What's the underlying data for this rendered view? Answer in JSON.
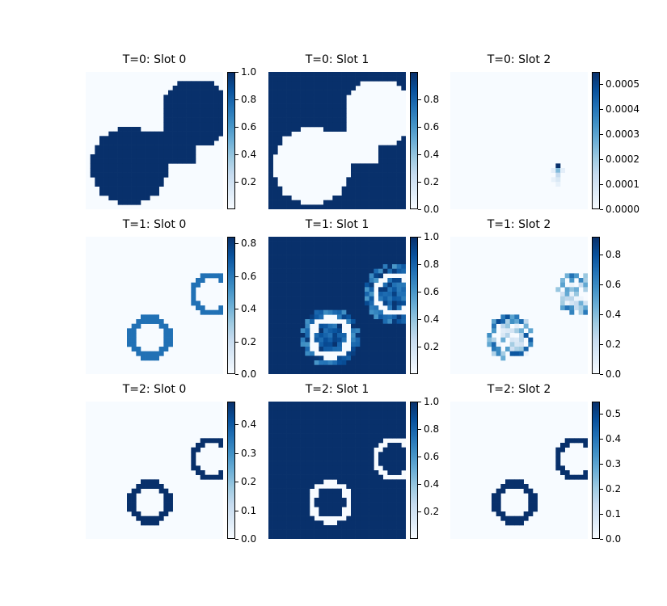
{
  "colormap": [
    "#f7fbff",
    "#deebf7",
    "#c6dbef",
    "#9ecae1",
    "#6baed6",
    "#4292c6",
    "#2171b5",
    "#08519c",
    "#08306b"
  ],
  "chart_data": [
    {
      "type": "heatmap",
      "title": "T=0: Slot 0",
      "grid": [
        30,
        30
      ],
      "colorbar": {
        "min": 0.0,
        "max": 1.0,
        "ticks": [
          "0.2",
          "0.4",
          "0.6",
          "0.8",
          "1.0"
        ],
        "tick_values": [
          0.2,
          0.4,
          0.6,
          0.8,
          1.0
        ]
      },
      "description_shapes": [
        {
          "kind": "disk",
          "cx": 9.5,
          "cy": 20.5,
          "r": 8.5,
          "value": 1.0
        },
        {
          "kind": "disk",
          "cx": 24,
          "cy": 9,
          "r": 7.5,
          "value": 1.0
        },
        {
          "kind": "rect",
          "x0": 5,
          "y0": 13,
          "x1": 24,
          "y1": 20,
          "value": 1.0
        },
        {
          "kind": "rect",
          "x0": 21,
          "y0": 4,
          "x1": 30,
          "y1": 9,
          "value": 1.0
        },
        {
          "kind": "clear_rect",
          "x0": 18,
          "y0": 21,
          "x1": 30,
          "y1": 30
        }
      ]
    },
    {
      "type": "heatmap",
      "title": "T=0: Slot 1",
      "grid": [
        30,
        30
      ],
      "colorbar": {
        "min": 0.0,
        "max": 1.0,
        "ticks": [
          "0.0",
          "0.2",
          "0.4",
          "0.6",
          "0.8"
        ],
        "tick_values": [
          0.0,
          0.2,
          0.4,
          0.6,
          0.8
        ]
      },
      "inverse_of": 0
    },
    {
      "type": "heatmap",
      "title": "T=0: Slot 2",
      "grid": [
        30,
        30
      ],
      "colorbar": {
        "min": 0.0,
        "max": 0.00055,
        "ticks": [
          "0.0000",
          "0.0001",
          "0.0002",
          "0.0003",
          "0.0004",
          "0.0005"
        ],
        "tick_values": [
          0.0,
          0.0001,
          0.0002,
          0.0003,
          0.0004,
          0.0005
        ]
      },
      "spots": [
        [
          23,
          20,
          1.0
        ],
        [
          23,
          21,
          0.45
        ],
        [
          23,
          22,
          0.25
        ],
        [
          23,
          23,
          0.15
        ],
        [
          22,
          21,
          0.1
        ],
        [
          24,
          21,
          0.1
        ],
        [
          22,
          23,
          0.08
        ],
        [
          23,
          24,
          0.08
        ]
      ]
    },
    {
      "type": "heatmap",
      "title": "T=1: Slot 0",
      "grid": [
        30,
        30
      ],
      "colorbar": {
        "min": 0.0,
        "max": 0.84,
        "ticks": [
          "0.0",
          "0.2",
          "0.4",
          "0.6",
          "0.8"
        ],
        "tick_values": [
          0.0,
          0.2,
          0.4,
          0.6,
          0.8
        ]
      },
      "rings": [
        {
          "cx": 14,
          "cy": 22,
          "r": 4,
          "value": 0.75
        },
        {
          "cx": 27.5,
          "cy": 12.5,
          "r": 4,
          "value": 0.75
        }
      ]
    },
    {
      "type": "heatmap",
      "title": "T=1: Slot 1",
      "grid": [
        30,
        30
      ],
      "colorbar": {
        "min": 0.0,
        "max": 1.0,
        "ticks": [
          "0.2",
          "0.4",
          "0.6",
          "0.8",
          "1.0"
        ],
        "tick_values": [
          0.2,
          0.4,
          0.6,
          0.8,
          1.0
        ]
      },
      "rings": [
        {
          "cx": 13.5,
          "cy": 22,
          "r": 4,
          "value": 0.0
        },
        {
          "cx": 27.5,
          "cy": 12.5,
          "r": 4,
          "value": 0.0
        }
      ]
    },
    {
      "type": "heatmap",
      "title": "T=1: Slot 2",
      "grid": [
        30,
        30
      ],
      "colorbar": {
        "min": 0.0,
        "max": 0.92,
        "ticks": [
          "0.0",
          "0.2",
          "0.4",
          "0.6",
          "0.8"
        ],
        "tick_values": [
          0.0,
          0.2,
          0.4,
          0.6,
          0.8
        ]
      },
      "noisy_blobs": [
        {
          "cx": 13,
          "cy": 22,
          "r": 5,
          "value": 0.6
        },
        {
          "cx": 27.5,
          "cy": 12.5,
          "r": 4.5,
          "value": 0.55
        }
      ]
    },
    {
      "type": "heatmap",
      "title": "T=2: Slot 0",
      "grid": [
        30,
        30
      ],
      "colorbar": {
        "min": 0.0,
        "max": 0.48,
        "ticks": [
          "0.0",
          "0.1",
          "0.2",
          "0.3",
          "0.4"
        ],
        "tick_values": [
          0.0,
          0.1,
          0.2,
          0.3,
          0.4
        ]
      },
      "rings": [
        {
          "cx": 14,
          "cy": 22,
          "r": 4,
          "value": 1.0
        },
        {
          "cx": 27.5,
          "cy": 12.5,
          "r": 4,
          "value": 1.0
        }
      ]
    },
    {
      "type": "heatmap",
      "title": "T=2: Slot 1",
      "grid": [
        30,
        30
      ],
      "colorbar": {
        "min": 0.0,
        "max": 1.0,
        "ticks": [
          "0.2",
          "0.4",
          "0.6",
          "0.8",
          "1.0"
        ],
        "tick_values": [
          0.2,
          0.4,
          0.6,
          0.8,
          1.0
        ]
      },
      "rings": [
        {
          "cx": 13.5,
          "cy": 22,
          "r": 4,
          "value": 0.0
        },
        {
          "cx": 27.5,
          "cy": 12.5,
          "r": 4,
          "value": 0.0
        }
      ]
    },
    {
      "type": "heatmap",
      "title": "T=2: Slot 2",
      "grid": [
        30,
        30
      ],
      "colorbar": {
        "min": 0.0,
        "max": 0.55,
        "ticks": [
          "0.0",
          "0.1",
          "0.2",
          "0.3",
          "0.4",
          "0.5"
        ],
        "tick_values": [
          0.0,
          0.1,
          0.2,
          0.3,
          0.4,
          0.5
        ]
      },
      "rings": [
        {
          "cx": 14,
          "cy": 22,
          "r": 4,
          "value": 1.0
        },
        {
          "cx": 27.5,
          "cy": 12.5,
          "r": 4,
          "value": 1.0
        }
      ]
    }
  ]
}
